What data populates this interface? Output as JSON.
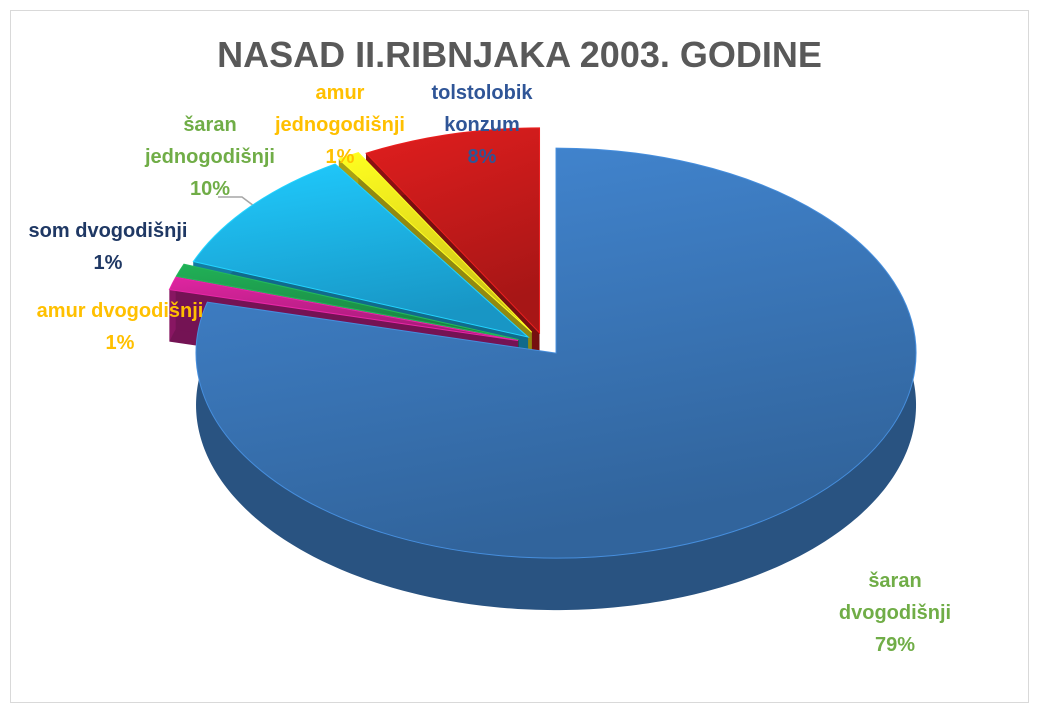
{
  "chart_data": {
    "type": "pie3d",
    "title": "NASAD II.RIBNJAKA 2003. GODINE",
    "categories": [
      "šaran dvogodišnji",
      "amur dvogodišnji",
      "som dvogodišnji",
      "šaran jednogodišnji",
      "amur jednogodišnji",
      "tolstolobik konzum"
    ],
    "values": [
      79,
      1,
      1,
      10,
      1,
      8
    ],
    "value_labels": [
      "79%",
      "1%",
      "1%",
      "10%",
      "1%",
      "8%"
    ],
    "colors": [
      "#3a76b8",
      "#c2208c",
      "#1d9a4c",
      "#1cb1e8",
      "#f2e41c",
      "#c41a1a"
    ],
    "label_colors": [
      "#70ad47",
      "#ffc000",
      "#1f3864",
      "#70ad47",
      "#ffc000",
      "#2f5597"
    ]
  }
}
